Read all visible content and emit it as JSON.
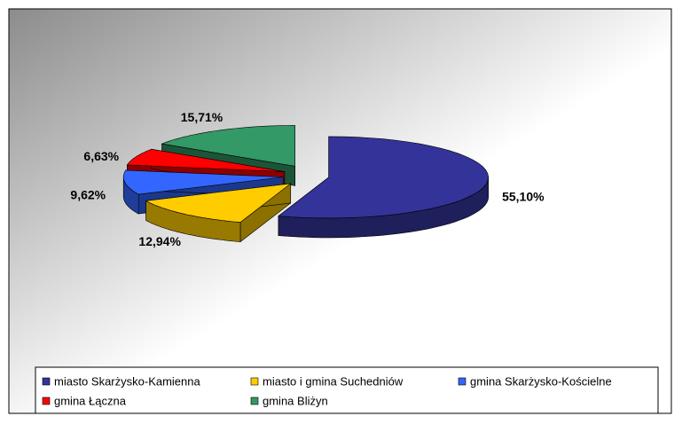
{
  "chart_data": {
    "type": "pie3d",
    "categories": [
      "miasto Skarżysko-Kamienna",
      "miasto i gmina Suchedniów",
      "gmina Skarżysko-Kościelne",
      "gmina Łączna",
      "gmina Bliżyn"
    ],
    "values": [
      55.1,
      12.94,
      9.62,
      6.63,
      15.71
    ],
    "value_labels": [
      "55,10%",
      "12,94%",
      "9,62%",
      "6,63%",
      "15,71%"
    ],
    "colors": [
      "#333399",
      "#ffcc00",
      "#3366ff",
      "#ff0000",
      "#339966"
    ],
    "legend": "bottom"
  }
}
